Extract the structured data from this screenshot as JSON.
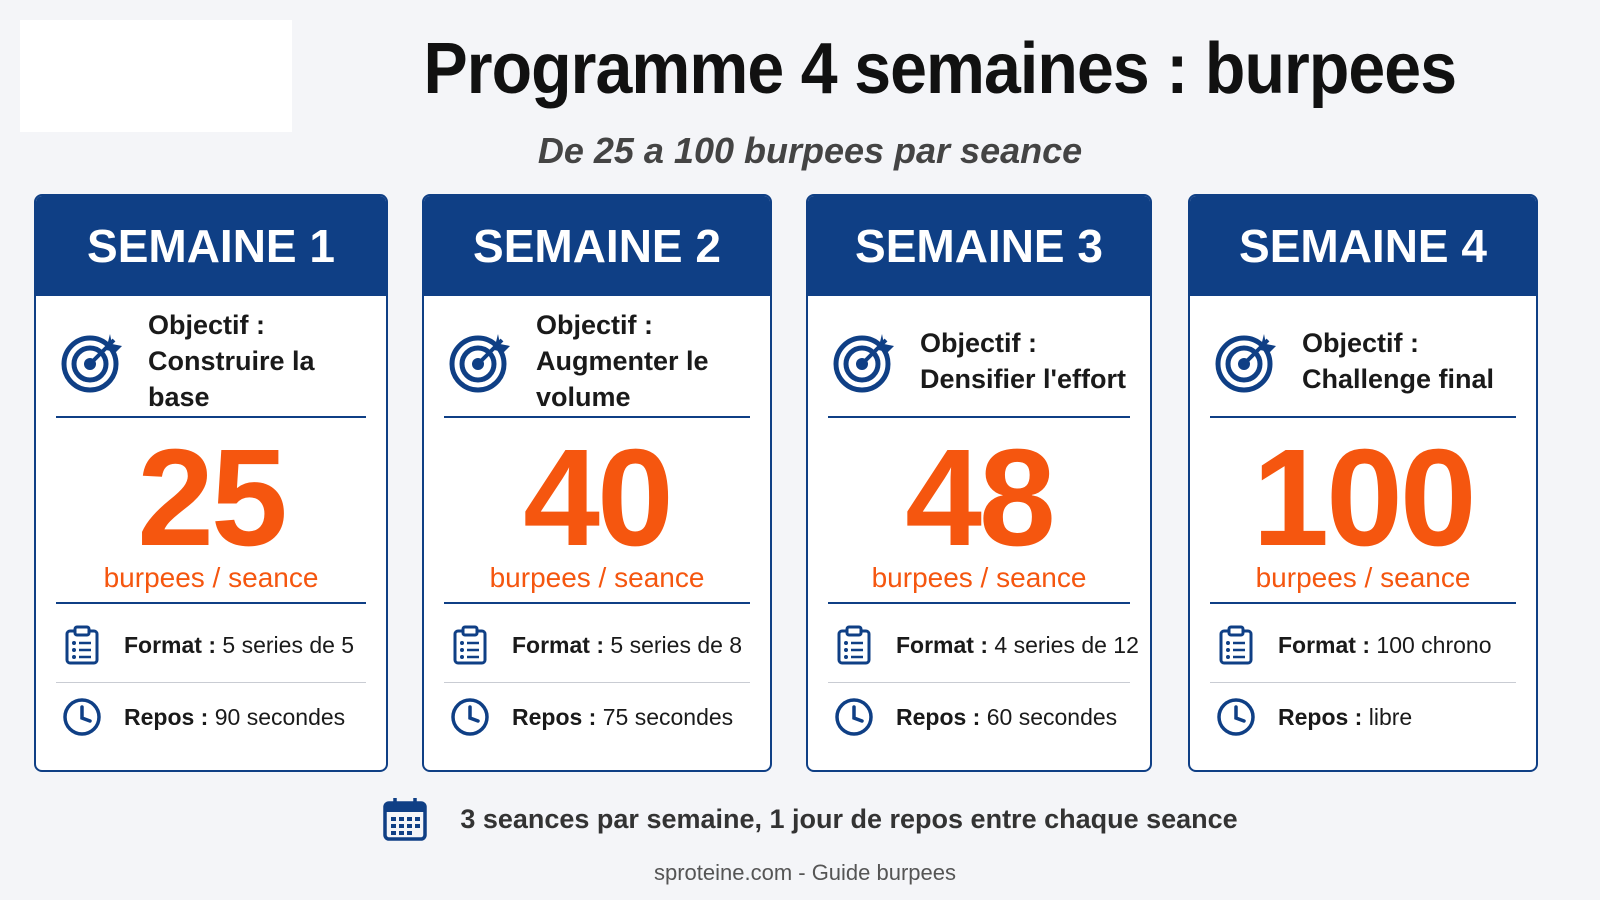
{
  "header": {
    "title": "Programme 4 semaines : burpees",
    "subtitle": "De 25 a 100 burpees par seance"
  },
  "labels": {
    "objectif": "Objectif :",
    "format": "Format",
    "repos": "Repos",
    "colon": " : ",
    "unit": "burpees / seance"
  },
  "weeks": [
    {
      "title": "SEMAINE 1",
      "objective": "Construire la base",
      "count": "25",
      "format": "5 series de 5",
      "rest": "90 secondes"
    },
    {
      "title": "SEMAINE 2",
      "objective": "Augmenter le volume",
      "count": "40",
      "format": "5 series de 8",
      "rest": "75 secondes"
    },
    {
      "title": "SEMAINE 3",
      "objective": "Densifier l'effort",
      "count": "48",
      "format": "4 series de 12",
      "rest": "60 secondes"
    },
    {
      "title": "SEMAINE 4",
      "objective": "Challenge final",
      "count": "100",
      "format": "100 chrono",
      "rest": "libre"
    }
  ],
  "footer": {
    "note": "3 seances par semaine, 1 jour de repos entre chaque seance",
    "source": "sproteine.com - Guide burpees"
  },
  "colors": {
    "navy": "#0f3f85",
    "orange": "#f5560f"
  },
  "icons": {
    "objective": "target-icon",
    "format": "clipboard-icon",
    "rest": "clock-icon",
    "schedule": "calendar-icon"
  }
}
